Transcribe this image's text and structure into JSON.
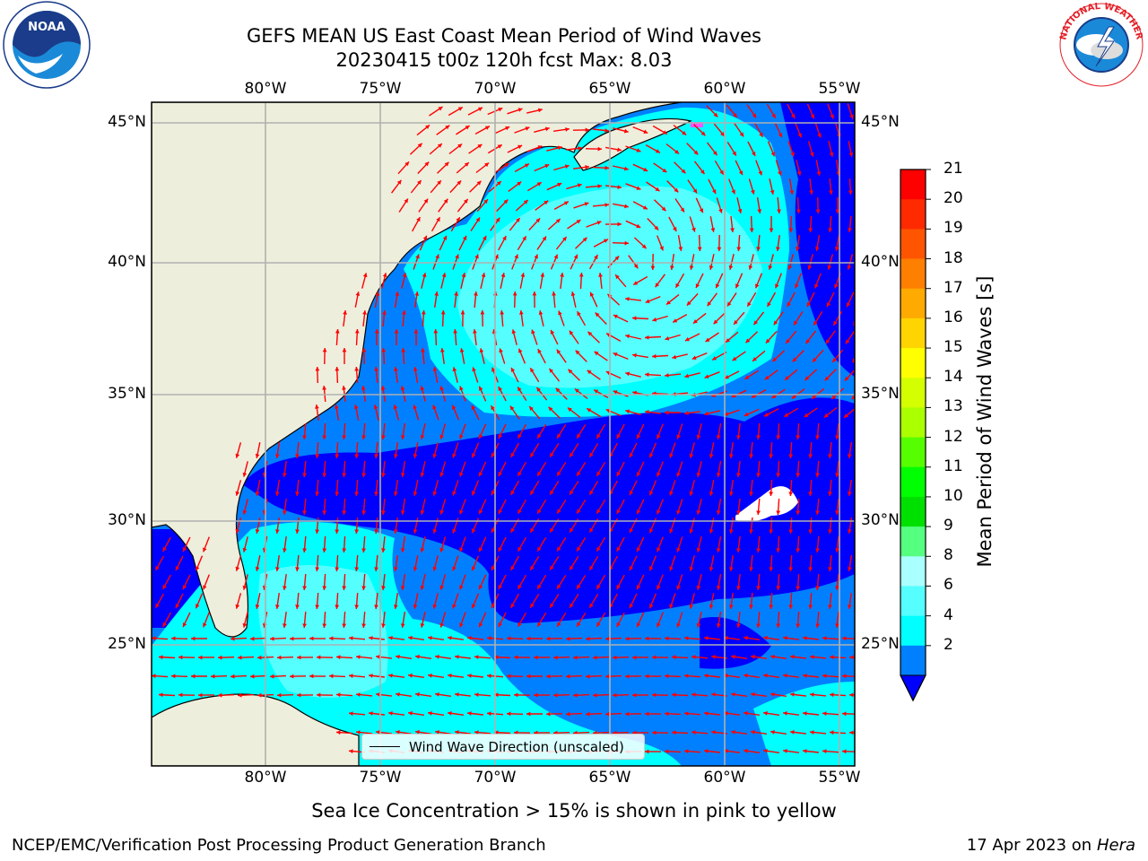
{
  "title": {
    "line1": "GEFS MEAN US East Coast Mean Period of Wind Waves",
    "line2": "20230415 t00z 120h fcst   Max: 8.03"
  },
  "logos": {
    "left_text": "NOAA",
    "left_ring": "NATIONAL OCEANIC AND ATMOSPHERIC ADMINISTRATION · U.S. DEPARTMENT OF COMMERCE",
    "right_ring": "NATIONAL WEATHER SERVICE"
  },
  "axes": {
    "lon_ticks": [
      "80°W",
      "75°W",
      "70°W",
      "65°W",
      "60°W",
      "55°W"
    ],
    "lat_ticks": [
      "45°N",
      "40°N",
      "35°N",
      "30°N",
      "25°N"
    ]
  },
  "colorbar": {
    "label": "Mean Period of Wind Waves [s]",
    "ticks": [
      "21",
      "20",
      "19",
      "18",
      "17",
      "16",
      "15",
      "14",
      "13",
      "12",
      "11",
      "10",
      "9",
      "8",
      "6",
      "4",
      "2"
    ],
    "colors": [
      "#ff0000",
      "#ff2a00",
      "#ff5500",
      "#ff8000",
      "#ffaa00",
      "#ffd400",
      "#ffff00",
      "#d4ff00",
      "#aaff00",
      "#55ff00",
      "#00ff00",
      "#00e000",
      "#55ff80",
      "#aaffff",
      "#55ffff",
      "#00ffff",
      "#0080ff"
    ],
    "under_color": "#0000ff"
  },
  "legend": {
    "label": "Wind Wave Direction (unscaled)"
  },
  "note": "Sea Ice Concentration > 15% is shown in pink to yellow",
  "footer": {
    "left": "NCEP/EMC/Verification Post Processing Product Generation Branch",
    "date": "17 Apr 2023 on ",
    "host": "Hera"
  },
  "map_colors": {
    "land": "#eeeedd",
    "ocean_2_4": "#0080ff",
    "ocean_lt2": "#0000ff",
    "ocean_4_6": "#00ffff",
    "ocean_6_8": "#55ffff",
    "arrow": "#ff0000"
  }
}
